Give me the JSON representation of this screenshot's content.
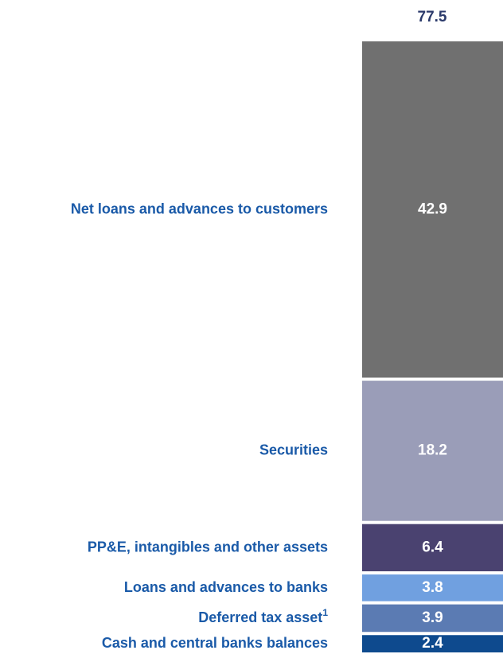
{
  "chart_data": {
    "type": "stacked-bar",
    "total": 77.5,
    "series": [
      {
        "name": "Cash and central banks balances",
        "color": "#0e4a8e",
        "values": [
          2.4
        ]
      },
      {
        "name": "Deferred tax asset",
        "footnote": "1",
        "color": "#5b7bb3",
        "values": [
          3.9
        ]
      },
      {
        "name": "Loans and advances to banks",
        "color": "#70a0e0",
        "values": [
          3.8
        ]
      },
      {
        "name": "PP&E, intangibles and other assets",
        "color": "#4a4270",
        "values": [
          6.4
        ]
      },
      {
        "name": "Securities",
        "color": "#9a9db8",
        "values": [
          18.2
        ]
      },
      {
        "name": "Net loans and advances to customers",
        "color": "#707070",
        "values": [
          42.9
        ]
      }
    ]
  }
}
